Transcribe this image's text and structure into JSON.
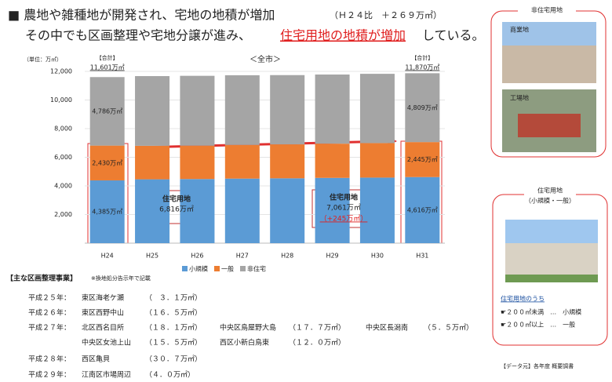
{
  "header": {
    "line1": "■ 農地や雑種地が開発され、宅地の地積が増加",
    "line1_note": "（Ｈ２４比　＋２６９万㎡）",
    "line2_a": "その中でも区画整理や宅地分譲が進み、",
    "line2_b": "住宅用地の地積が増加",
    "line2_c": "している。"
  },
  "chart_data": {
    "type": "stacked_bar",
    "title": "＜全市＞",
    "y_unit": "（単位：万㎡）",
    "categories": [
      "H24",
      "H25",
      "H26",
      "H27",
      "H28",
      "H29",
      "H30",
      "H31"
    ],
    "series": [
      {
        "name": "小規模",
        "color": "#5b9bd5",
        "values": [
          4385,
          4460,
          4480,
          4510,
          4530,
          4560,
          4580,
          4616
        ],
        "value_labels": [
          "4,385万㎡",
          null,
          null,
          null,
          null,
          null,
          null,
          "4,616万㎡"
        ]
      },
      {
        "name": "一般",
        "color": "#ed7d31",
        "values": [
          2430,
          2340,
          2330,
          2350,
          2370,
          2390,
          2410,
          2445
        ],
        "value_labels": [
          "2,430万㎡",
          null,
          null,
          null,
          null,
          null,
          null,
          "2,445万㎡"
        ]
      },
      {
        "name": "非住宅",
        "color": "#a5a5a5",
        "values": [
          4786,
          4870,
          4880,
          4870,
          4840,
          4830,
          4840,
          4809
        ],
        "value_labels": [
          "4,786万㎡",
          null,
          null,
          null,
          null,
          null,
          null,
          "4,809万㎡"
        ]
      }
    ],
    "totals": {
      "caption": "【合計】",
      "values": [
        11601,
        null,
        null,
        null,
        null,
        null,
        null,
        11870
      ],
      "value_labels": [
        "11,601万㎡",
        null,
        null,
        null,
        null,
        null,
        null,
        "11,870万㎡"
      ]
    },
    "annotations": [
      {
        "title": "住宅用地",
        "text": "6,816万㎡"
      },
      {
        "title": "住宅用地",
        "text": "7,061万㎡",
        "change": "（+245万㎡）"
      }
    ],
    "ylim": [
      0,
      12000
    ],
    "yticks": [
      {
        "value": 2000,
        "label": "2,000"
      },
      {
        "value": 4000,
        "label": "4,000"
      },
      {
        "value": 6000,
        "label": "6,000"
      },
      {
        "value": 8000,
        "label": "8,000"
      },
      {
        "value": 10000,
        "label": "10,000"
      },
      {
        "value": 12000,
        "label": "12,000"
      }
    ],
    "grid": true,
    "legend": "bottom"
  },
  "projects": {
    "title": "【主な区画整理事業】",
    "note": "※換地処分告示年で記載",
    "rows": [
      {
        "year": "平成２５年：",
        "items": [
          {
            "name": "東区海老ケ瀬",
            "area": "（　３．１万㎡）"
          }
        ]
      },
      {
        "year": "平成２６年：",
        "items": [
          {
            "name": "東区西野中山",
            "area": "（１６．５万㎡）"
          }
        ]
      },
      {
        "year": "平成２７年：",
        "items": [
          {
            "name": "北区西名目所",
            "area": "（１８．１万㎡）"
          },
          {
            "name": "中央区鳥屋野大島",
            "area": "（１７．７万㎡）"
          },
          {
            "name": "中央区長潟南",
            "area": "（５．５万㎡）"
          }
        ]
      },
      {
        "items": [
          {
            "name": "中央区女池上山",
            "area": "（１５．５万㎡）"
          },
          {
            "name": "西区小新白鳥東",
            "area": "（１２．０万㎡）"
          }
        ]
      },
      {
        "year": "平成２８年：",
        "items": [
          {
            "name": "西区亀貝",
            "area": "（３０．７万㎡）"
          }
        ]
      },
      {
        "year": "平成２９年：",
        "items": [
          {
            "name": "江南区市場周辺",
            "area": "（４．０万㎡）"
          }
        ]
      }
    ]
  },
  "sidebar": {
    "non_residential": "非住宅用地",
    "commercial": "商業地",
    "factory": "工場地",
    "residential": "住宅用地",
    "residential_sub": "（小規模・一般）",
    "note_title": "住宅用地のうち",
    "note_small": "☛２００㎡未満　…　小規模",
    "note_general": "☛２００㎡以上　…　一般",
    "source": "【データ元】各年度 概要調書"
  }
}
